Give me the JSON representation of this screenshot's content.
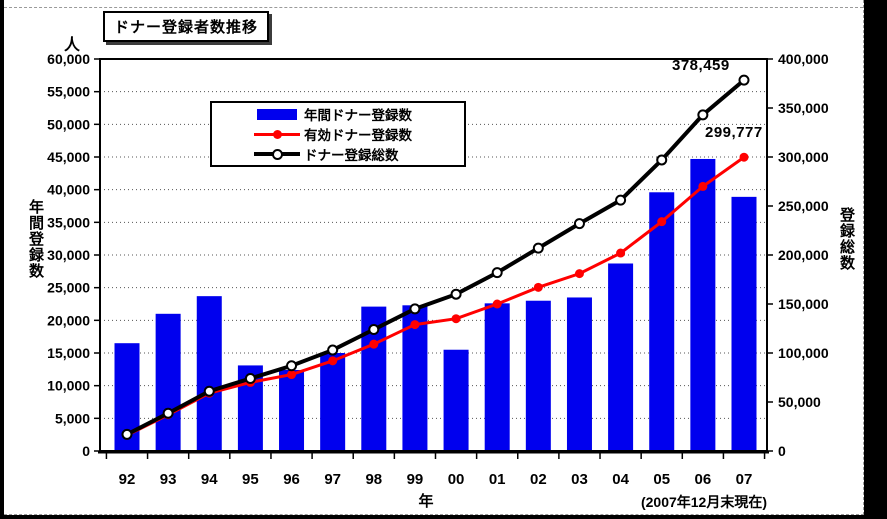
{
  "title": "ドナー登録者数推移",
  "chart_data": {
    "type": "combo",
    "title": "ドナー登録者数推移",
    "categories": [
      "92",
      "93",
      "94",
      "95",
      "96",
      "97",
      "98",
      "99",
      "00",
      "01",
      "02",
      "03",
      "04",
      "05",
      "06",
      "07"
    ],
    "series": [
      {
        "name": "年間ドナー登録数",
        "type": "bar",
        "axis": "left",
        "color": "#0000ee",
        "values": [
          16500,
          21000,
          23700,
          13100,
          12400,
          15000,
          22100,
          22300,
          15500,
          22600,
          23000,
          23500,
          28700,
          39600,
          44700,
          38900
        ]
      },
      {
        "name": "有効ドナー登録数",
        "type": "line",
        "axis": "right",
        "color": "#ff0000",
        "marker": "filled-circle",
        "values": [
          16000,
          37000,
          59000,
          70000,
          78000,
          92000,
          109000,
          129000,
          135000,
          150000,
          167000,
          181000,
          202000,
          234000,
          270000,
          299777
        ]
      },
      {
        "name": "ドナー登録総数",
        "type": "line",
        "axis": "right",
        "color": "#000000",
        "marker": "open-circle",
        "values": [
          17000,
          38500,
          61000,
          74000,
          87000,
          103000,
          124000,
          145000,
          160000,
          182000,
          207000,
          232000,
          256000,
          297000,
          343000,
          378459
        ]
      }
    ],
    "left_axis": {
      "unit": "人",
      "title": "年間登録数",
      "min": 0,
      "max": 60000,
      "step": 5000
    },
    "right_axis": {
      "title": "登録総数",
      "min": 0,
      "max": 400000,
      "step": 50000
    },
    "x_axis": {
      "title": "年",
      "footnote": "(2007年12月末現在)"
    },
    "annotations": [
      {
        "text": "378,459",
        "series": "ドナー登録総数",
        "category": "07"
      },
      {
        "text": "299,777",
        "series": "有効ドナー登録数",
        "category": "07"
      }
    ],
    "grid": "horizontal-dotted",
    "legend_position": "upper-left-inside"
  }
}
